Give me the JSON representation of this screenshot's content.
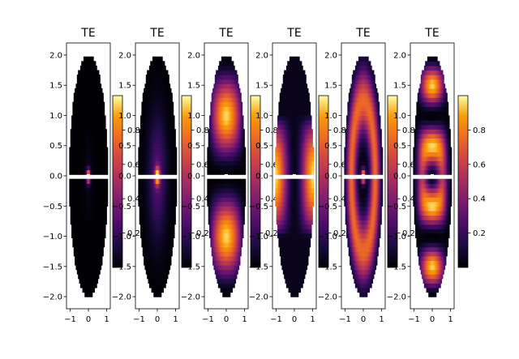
{
  "chart_data": {
    "type": "heatmap",
    "colormap": "inferno",
    "grid": false,
    "panels": [
      {
        "title": "TE",
        "mode": "fundamental",
        "xticks": [
          "−1",
          "0",
          "1"
        ],
        "yticks": [
          "2.0",
          "1.5",
          "1.0",
          "0.5",
          "0.0",
          "−0.5",
          "−1.0",
          "−1.5",
          "−2.0"
        ],
        "colorbar_ticks": [
          "0.8",
          "0.6",
          "0.4",
          "0.2"
        ],
        "xlim": [
          -1.2,
          1.2
        ],
        "ylim": [
          -2.2,
          2.2
        ]
      },
      {
        "title": "TE",
        "mode": "fundamental-wide",
        "xticks": [
          "−1",
          "0",
          "1"
        ],
        "yticks": [
          "2.0",
          "1.5",
          "1.0",
          "0.5",
          "0.0",
          "−0.5",
          "−1.0",
          "−1.5",
          "−2.0"
        ],
        "colorbar_ticks": [
          "0.8",
          "0.6",
          "0.4",
          "0.2"
        ],
        "xlim": [
          -1.2,
          1.2
        ],
        "ylim": [
          -2.2,
          2.2
        ]
      },
      {
        "title": "TE",
        "mode": "two-lobe-vertical",
        "xticks": [
          "−1",
          "0",
          "1"
        ],
        "yticks": [
          "2.0",
          "1.5",
          "1.0",
          "0.5",
          "0.0",
          "−0.5",
          "−1.0",
          "−1.5",
          "−2.0"
        ],
        "colorbar_ticks": [
          "0.8",
          "0.6",
          "0.4",
          "0.2"
        ],
        "xlim": [
          -1.2,
          1.2
        ],
        "ylim": [
          -2.2,
          2.2
        ]
      },
      {
        "title": "TE",
        "mode": "two-lobe-horizontal",
        "xticks": [
          "−1",
          "0",
          "1"
        ],
        "yticks": [
          "2.0",
          "1.5",
          "1.0",
          "0.5",
          "0.0",
          "−0.5",
          "−1.0",
          "−1.5",
          "−2.0"
        ],
        "colorbar_ticks": [
          "0.8",
          "0.6",
          "0.4",
          "0.2"
        ],
        "xlim": [
          -1.2,
          1.2
        ],
        "ylim": [
          -2.2,
          2.2
        ]
      },
      {
        "title": "TE",
        "mode": "ring",
        "xticks": [
          "−1",
          "0",
          "1"
        ],
        "yticks": [
          "2.0",
          "1.5",
          "1.0",
          "0.5",
          "0.0",
          "−0.5",
          "−1.0",
          "−1.5",
          "−2.0"
        ],
        "colorbar_ticks": [
          "0.8",
          "0.6",
          "0.4",
          "0.2"
        ],
        "xlim": [
          -1.2,
          1.2
        ],
        "ylim": [
          -2.2,
          2.2
        ]
      },
      {
        "title": "TE",
        "mode": "four-lobe",
        "xticks": [
          "−1",
          "0",
          "1"
        ],
        "yticks": [
          "2.0",
          "1.5",
          "1.0",
          "0.5",
          "0.0",
          "−0.5",
          "−1.0",
          "−1.5",
          "−2.0"
        ],
        "colorbar_ticks": [
          "0.8",
          "0.6",
          "0.4",
          "0.2"
        ],
        "xlim": [
          -1.2,
          1.2
        ],
        "ylim": [
          -2.2,
          2.2
        ]
      }
    ],
    "colorbar_range": [
      0,
      1
    ]
  }
}
